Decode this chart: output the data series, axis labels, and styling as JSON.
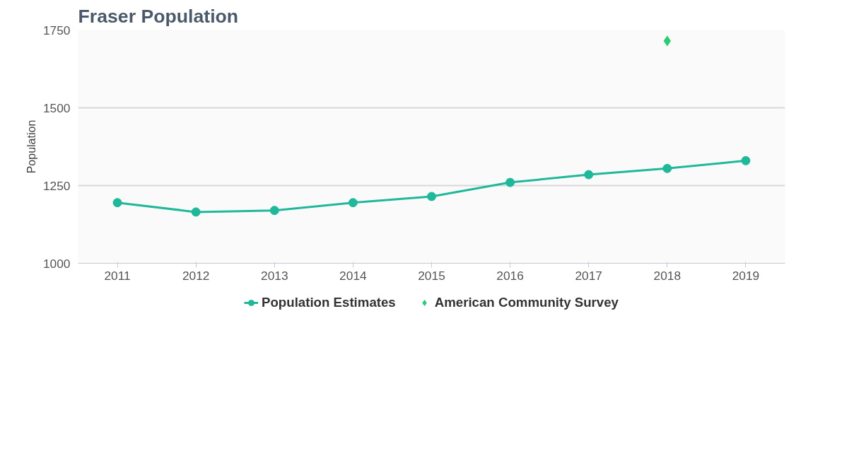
{
  "chart_data": {
    "type": "line",
    "title": "Fraser Population",
    "ylabel": "Population",
    "categories": [
      "2011",
      "2012",
      "2013",
      "2014",
      "2015",
      "2016",
      "2017",
      "2018",
      "2019"
    ],
    "ylim": [
      1000,
      1750
    ],
    "yticks": [
      1000,
      1250,
      1500,
      1750
    ],
    "grid": "y",
    "legend": "bottom",
    "series": [
      {
        "name": "Population Estimates",
        "color": "#1fb89a",
        "marker": "circle",
        "values": [
          1195,
          1165,
          1170,
          1195,
          1215,
          1260,
          1285,
          1305,
          1330
        ]
      },
      {
        "name": "American Community Survey",
        "color": "#2ecc71",
        "type": "scatter",
        "marker": "diamond",
        "values": [
          null,
          null,
          null,
          null,
          null,
          null,
          null,
          1715,
          null
        ]
      }
    ]
  }
}
